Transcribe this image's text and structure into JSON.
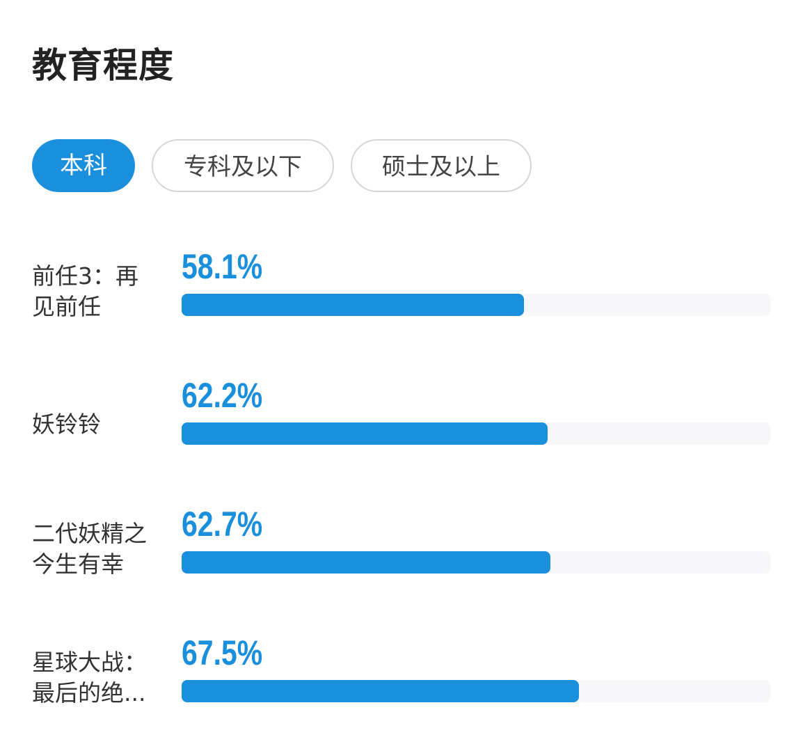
{
  "header": {
    "title": "教育程度"
  },
  "tabs": [
    {
      "label": "本科",
      "active": true
    },
    {
      "label": "专科及以下",
      "active": false
    },
    {
      "label": "硕士及以上",
      "active": false
    }
  ],
  "colors": {
    "accent": "#1a8fdc",
    "track": "#f7f7f9"
  },
  "chart_data": {
    "type": "bar",
    "title": "教育程度",
    "orientation": "horizontal",
    "categories": [
      "前任3：再\n见前任",
      "妖铃铃",
      "二代妖精之\n今生有幸",
      "星球大战：\n最后的绝..."
    ],
    "values": [
      58.1,
      62.2,
      62.7,
      67.5
    ],
    "value_labels": [
      "58.1%",
      "62.2%",
      "62.7%",
      "67.5%"
    ],
    "unit": "%",
    "xlim": [
      0,
      100
    ]
  }
}
